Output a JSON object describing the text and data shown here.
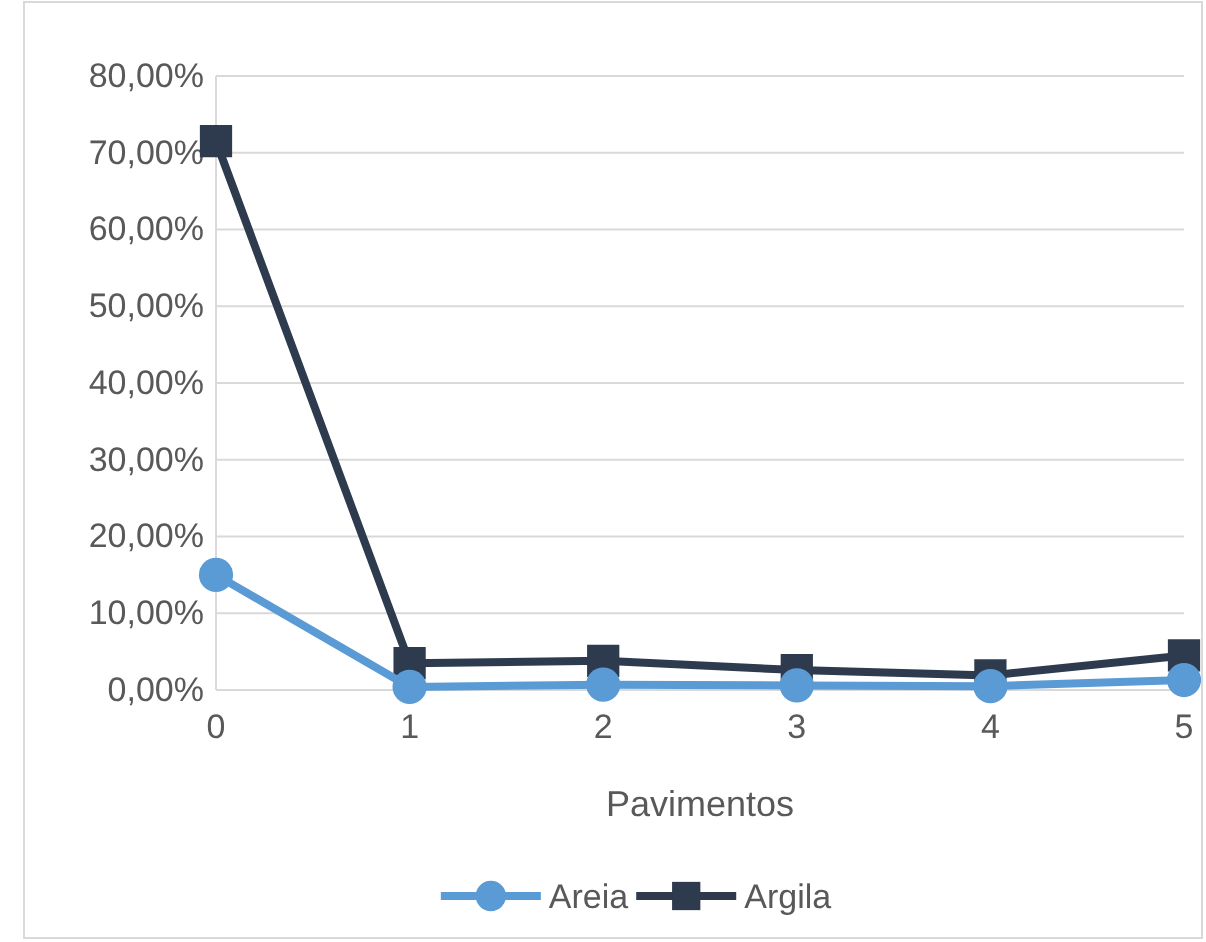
{
  "chart_data": {
    "type": "line",
    "xlabel": "Pavimentos",
    "x": [
      0,
      1,
      2,
      3,
      4,
      5
    ],
    "xlim": [
      0,
      5
    ],
    "xticks": [
      0,
      1,
      2,
      3,
      4,
      5
    ],
    "ylim": [
      0,
      80
    ],
    "yticks": [
      {
        "value": 0,
        "label": "0,00%"
      },
      {
        "value": 10,
        "label": "10,00%"
      },
      {
        "value": 20,
        "label": "20,00%"
      },
      {
        "value": 30,
        "label": "30,00%"
      },
      {
        "value": 40,
        "label": "40,00%"
      },
      {
        "value": 50,
        "label": "50,00%"
      },
      {
        "value": 60,
        "label": "60,00%"
      },
      {
        "value": 70,
        "label": "70,00%"
      },
      {
        "value": 80,
        "label": "80,00%"
      }
    ],
    "grid": "y",
    "legend": "bottom",
    "series": [
      {
        "name": "Areia",
        "color": "#5b9bd5",
        "marker": "circle",
        "values": [
          15,
          0.4,
          0.7,
          0.6,
          0.5,
          1.3
        ]
      },
      {
        "name": "Argila",
        "color": "#2e3a4d",
        "marker": "square",
        "values": [
          71.5,
          3.5,
          3.8,
          2.6,
          1.9,
          4.5
        ]
      }
    ]
  }
}
